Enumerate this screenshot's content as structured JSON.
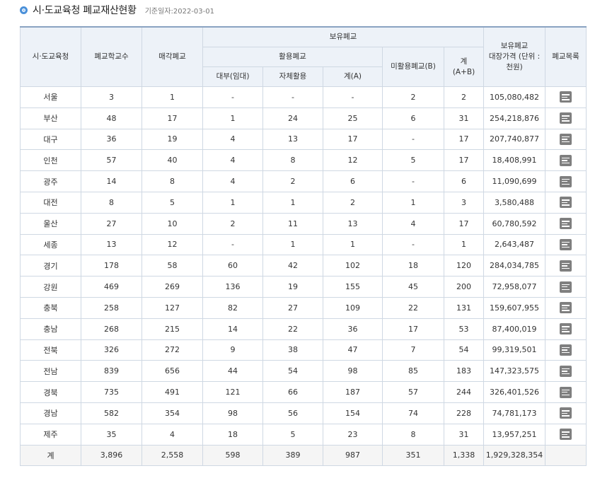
{
  "header": {
    "title": "시·도교육청 폐교재산현황",
    "ref_date": "기준일자:2022-03-01"
  },
  "table": {
    "headers": {
      "region": "시·도교육청",
      "closed_count": "폐교학교수",
      "sold": "매각폐교",
      "holding": "보유폐교",
      "utilized": "활용폐교",
      "lease": "대부(임대)",
      "self_use": "자체활용",
      "sum_a": "계(A)",
      "unused": "미활용폐교(B)",
      "total_ab_1": "계",
      "total_ab_2": "(A+B)",
      "value_1": "보유폐교",
      "value_2": "대장가격 (단위 :",
      "value_3": "천원)",
      "list": "폐교목록"
    },
    "rows": [
      {
        "region": "서울",
        "closed": "3",
        "sold": "1",
        "lease": "-",
        "self": "-",
        "a": "-",
        "b": "2",
        "ab": "2",
        "value": "105,080,482"
      },
      {
        "region": "부산",
        "closed": "48",
        "sold": "17",
        "lease": "1",
        "self": "24",
        "a": "25",
        "b": "6",
        "ab": "31",
        "value": "254,218,876"
      },
      {
        "region": "대구",
        "closed": "36",
        "sold": "19",
        "lease": "4",
        "self": "13",
        "a": "17",
        "b": "-",
        "ab": "17",
        "value": "207,740,877"
      },
      {
        "region": "인천",
        "closed": "57",
        "sold": "40",
        "lease": "4",
        "self": "8",
        "a": "12",
        "b": "5",
        "ab": "17",
        "value": "18,408,991"
      },
      {
        "region": "광주",
        "closed": "14",
        "sold": "8",
        "lease": "4",
        "self": "2",
        "a": "6",
        "b": "-",
        "ab": "6",
        "value": "11,090,699"
      },
      {
        "region": "대전",
        "closed": "8",
        "sold": "5",
        "lease": "1",
        "self": "1",
        "a": "2",
        "b": "1",
        "ab": "3",
        "value": "3,580,488"
      },
      {
        "region": "울산",
        "closed": "27",
        "sold": "10",
        "lease": "2",
        "self": "11",
        "a": "13",
        "b": "4",
        "ab": "17",
        "value": "60,780,592"
      },
      {
        "region": "세종",
        "closed": "13",
        "sold": "12",
        "lease": "-",
        "self": "1",
        "a": "1",
        "b": "-",
        "ab": "1",
        "value": "2,643,487"
      },
      {
        "region": "경기",
        "closed": "178",
        "sold": "58",
        "lease": "60",
        "self": "42",
        "a": "102",
        "b": "18",
        "ab": "120",
        "value": "284,034,785"
      },
      {
        "region": "강원",
        "closed": "469",
        "sold": "269",
        "lease": "136",
        "self": "19",
        "a": "155",
        "b": "45",
        "ab": "200",
        "value": "72,958,077"
      },
      {
        "region": "충북",
        "closed": "258",
        "sold": "127",
        "lease": "82",
        "self": "27",
        "a": "109",
        "b": "22",
        "ab": "131",
        "value": "159,607,955"
      },
      {
        "region": "충남",
        "closed": "268",
        "sold": "215",
        "lease": "14",
        "self": "22",
        "a": "36",
        "b": "17",
        "ab": "53",
        "value": "87,400,019"
      },
      {
        "region": "전북",
        "closed": "326",
        "sold": "272",
        "lease": "9",
        "self": "38",
        "a": "47",
        "b": "7",
        "ab": "54",
        "value": "99,319,501"
      },
      {
        "region": "전남",
        "closed": "839",
        "sold": "656",
        "lease": "44",
        "self": "54",
        "a": "98",
        "b": "85",
        "ab": "183",
        "value": "147,323,575"
      },
      {
        "region": "경북",
        "closed": "735",
        "sold": "491",
        "lease": "121",
        "self": "66",
        "a": "187",
        "b": "57",
        "ab": "244",
        "value": "326,401,526"
      },
      {
        "region": "경남",
        "closed": "582",
        "sold": "354",
        "lease": "98",
        "self": "56",
        "a": "154",
        "b": "74",
        "ab": "228",
        "value": "74,781,173"
      },
      {
        "region": "제주",
        "closed": "35",
        "sold": "4",
        "lease": "18",
        "self": "5",
        "a": "23",
        "b": "8",
        "ab": "31",
        "value": "13,957,251"
      }
    ],
    "total": {
      "region": "계",
      "closed": "3,896",
      "sold": "2,558",
      "lease": "598",
      "self": "389",
      "a": "987",
      "b": "351",
      "ab": "1,338",
      "value": "1,929,328,354"
    },
    "icon": "list-icon"
  }
}
